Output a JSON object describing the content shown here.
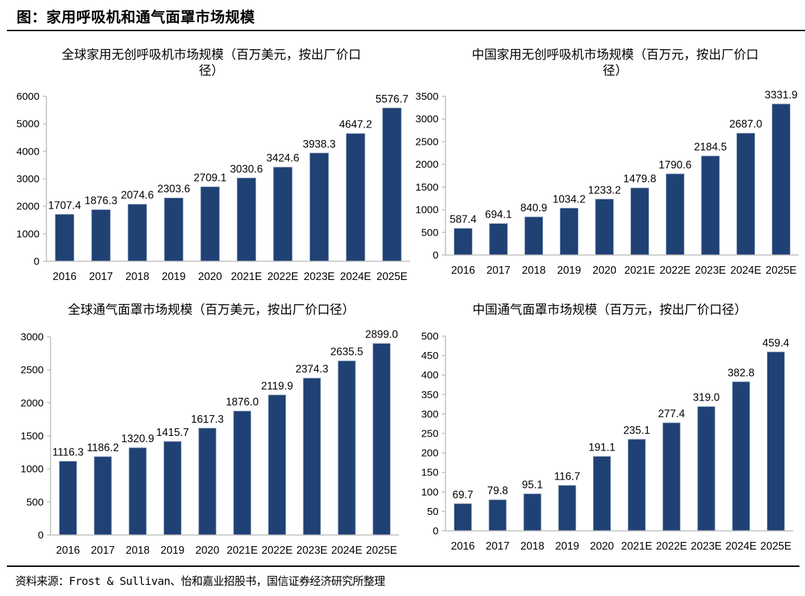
{
  "page": {
    "title": "图：家用呼吸机和通气面罩市场规模",
    "source": "资料来源：Frost & Sullivan、怡和嘉业招股书，国信证券经济研究所整理"
  },
  "colors": {
    "bar": "#1f4174",
    "axis": "#bfbfbf",
    "bar_edge": "#8ea3c0"
  },
  "chart_data": [
    {
      "type": "bar",
      "title_line1": "全球家用无创呼吸机市场规模（百万美元，按出厂价口",
      "title_line2": "径）",
      "categories": [
        "2016",
        "2017",
        "2018",
        "2019",
        "2020",
        "2021E",
        "2022E",
        "2023E",
        "2024E",
        "2025E"
      ],
      "values": [
        1707.4,
        1876.3,
        2074.6,
        2303.6,
        2709.1,
        3030.6,
        3424.6,
        3938.3,
        4647.2,
        5576.7
      ],
      "labels": [
        "1707.4",
        "1876.3",
        "2074.6",
        "2303.6",
        "2709.1",
        "3030.6",
        "3424.6",
        "3938.3",
        "4647.2",
        "5576.7"
      ],
      "yticks": [
        "0",
        "1000",
        "2000",
        "3000",
        "4000",
        "5000",
        "6000"
      ],
      "ylim": [
        0,
        6000
      ],
      "xlabel": "",
      "ylabel": "",
      "grid": false
    },
    {
      "type": "bar",
      "title_line1": "中国家用无创呼吸机市场规模（百万元，按出厂价口",
      "title_line2": "径）",
      "categories": [
        "2016",
        "2017",
        "2018",
        "2019",
        "2020",
        "2021E",
        "2022E",
        "2023E",
        "2024E",
        "2025E"
      ],
      "values": [
        587.4,
        694.1,
        840.9,
        1034.2,
        1233.2,
        1479.8,
        1790.6,
        2184.5,
        2687.0,
        3331.9
      ],
      "labels": [
        "587.4",
        "694.1",
        "840.9",
        "1034.2",
        "1233.2",
        "1479.8",
        "1790.6",
        "2184.5",
        "2687.0",
        "3331.9"
      ],
      "yticks": [
        "0",
        "500",
        "1000",
        "1500",
        "2000",
        "2500",
        "3000",
        "3500"
      ],
      "ylim": [
        0,
        3500
      ],
      "xlabel": "",
      "ylabel": "",
      "grid": false
    },
    {
      "type": "bar",
      "title_line1": "全球通气面罩市场规模（百万美元，按出厂价口径）",
      "title_line2": "",
      "categories": [
        "2016",
        "2017",
        "2018",
        "2019",
        "2020",
        "2021E",
        "2022E",
        "2023E",
        "2024E",
        "2025E"
      ],
      "values": [
        1116.3,
        1186.2,
        1320.9,
        1415.7,
        1617.3,
        1876.0,
        2119.9,
        2374.3,
        2635.5,
        2899.0
      ],
      "labels": [
        "1116.3",
        "1186.2",
        "1320.9",
        "1415.7",
        "1617.3",
        "1876.0",
        "2119.9",
        "2374.3",
        "2635.5",
        "2899.0"
      ],
      "yticks": [
        "0",
        "500",
        "1000",
        "1500",
        "2000",
        "2500",
        "3000"
      ],
      "ylim": [
        0,
        3000
      ],
      "xlabel": "",
      "ylabel": "",
      "grid": false
    },
    {
      "type": "bar",
      "title_line1": "中国通气面罩市场规模（百万元，按出厂价口径）",
      "title_line2": "",
      "categories": [
        "2016",
        "2017",
        "2018",
        "2019",
        "2020",
        "2021E",
        "2022E",
        "2023E",
        "2024E",
        "2025E"
      ],
      "values": [
        69.7,
        79.8,
        95.1,
        116.7,
        191.1,
        235.1,
        277.4,
        319.0,
        382.8,
        459.4
      ],
      "labels": [
        "69.7",
        "79.8",
        "95.1",
        "116.7",
        "191.1",
        "235.1",
        "277.4",
        "319.0",
        "382.8",
        "459.4"
      ],
      "yticks": [
        "0",
        "50",
        "100",
        "150",
        "200",
        "250",
        "300",
        "350",
        "400",
        "450",
        "500"
      ],
      "ylim": [
        0,
        500
      ],
      "xlabel": "",
      "ylabel": "",
      "grid": false
    }
  ]
}
